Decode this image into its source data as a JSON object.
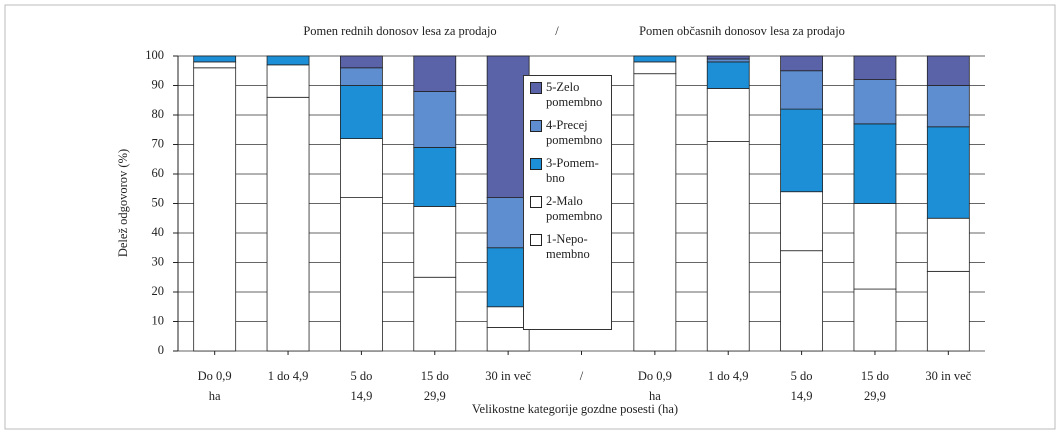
{
  "chart_data": {
    "type": "stacked_bar",
    "titles": [
      "Pomen rednih donosov lesa za prodajo",
      "/",
      "Pomen občasnih donosov lesa za prodajo"
    ],
    "y_label": "Delež odgovorov (%)",
    "x_label": "Velikostne kategorije gozdne posesti (ha)",
    "categories": [
      "Do 0,9 ha",
      "1 do 4,9",
      "5 do 14,9",
      "15 do 29,9",
      "30 in več",
      "/",
      "Do 0,9 ha",
      "1 do 4,9",
      "5 do 14,9",
      "15 do 29,9",
      "30 in več"
    ],
    "series": [
      {
        "name": "1-Nepo-membno",
        "color": "#ffffff",
        "values": [
          96,
          86,
          52,
          25,
          8,
          null,
          94,
          71,
          34,
          21,
          27
        ]
      },
      {
        "name": "2-Malo pomembno",
        "color": "#ffffff",
        "values": [
          2,
          11,
          20,
          24,
          7,
          null,
          4,
          18,
          20,
          29,
          18
        ]
      },
      {
        "name": "3-Pomem-bno",
        "color": "#1c8fd6",
        "values": [
          2,
          3,
          18,
          20,
          20,
          null,
          2,
          9,
          28,
          27,
          31
        ]
      },
      {
        "name": "4-Precej pomembno",
        "color": "#5f8ed0",
        "values": [
          0,
          0,
          6,
          19,
          17,
          null,
          0,
          1,
          13,
          15,
          14
        ]
      },
      {
        "name": "5-Zelo pomembno",
        "color": "#5a62a8",
        "values": [
          0,
          0,
          4,
          12,
          48,
          null,
          0,
          1,
          5,
          8,
          10
        ]
      }
    ],
    "ylim": [
      0,
      100
    ],
    "yticks": [
      0,
      10,
      20,
      30,
      40,
      50,
      60,
      70,
      80,
      90,
      100
    ],
    "grid": true,
    "legend": "center"
  }
}
